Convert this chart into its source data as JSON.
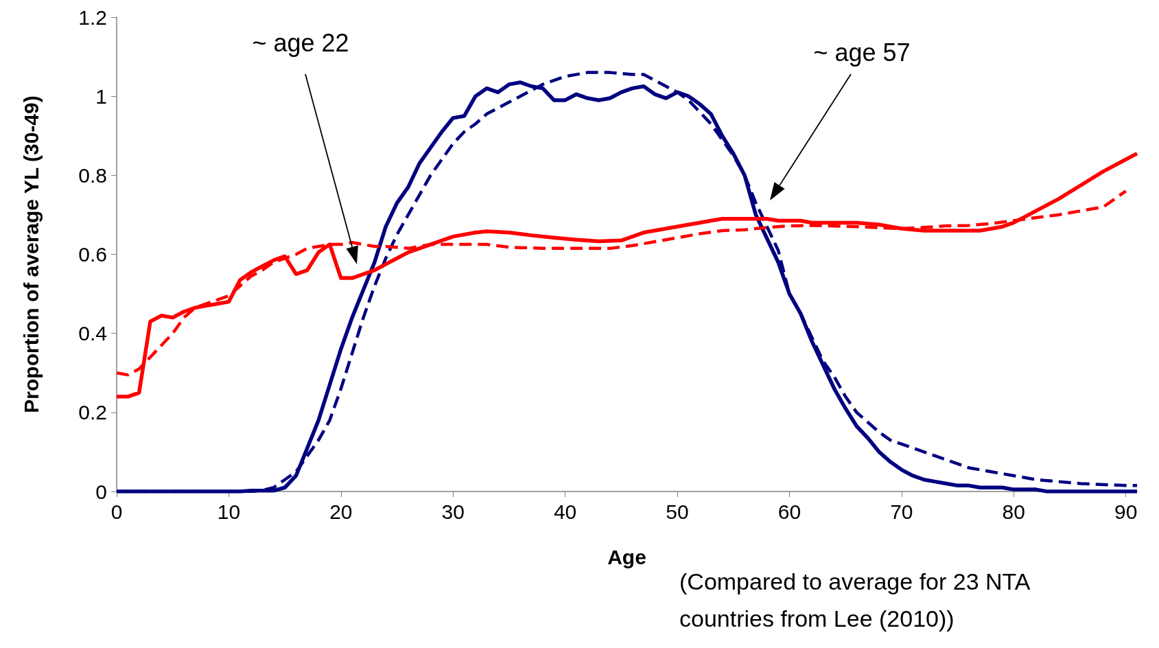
{
  "chart_data": {
    "type": "line",
    "xlabel": "Age",
    "ylabel": "Proportion of average YL (30-49)",
    "xlim": [
      0,
      91
    ],
    "xticks": [
      0,
      10,
      20,
      30,
      40,
      50,
      60,
      70,
      80,
      90
    ],
    "ylim": [
      0,
      1.2
    ],
    "yticks": [
      0,
      0.2,
      0.4,
      0.6,
      0.8,
      1,
      1.2
    ],
    "grid": false,
    "marker": "none",
    "annotations": [
      "~ age 22",
      "~ age 57",
      "(Compared to average for 23 NTA countries from Lee (2010))"
    ],
    "series": [
      {
        "color": "#ff0000",
        "line_style": "solid",
        "x": [
          0,
          1,
          2,
          3,
          4,
          5,
          6,
          7,
          8,
          9,
          10,
          11,
          12,
          13,
          14,
          15,
          16,
          17,
          18,
          19,
          20,
          21,
          22,
          23,
          24,
          25,
          26,
          27,
          28,
          29,
          30,
          32,
          33,
          35,
          37,
          39,
          41,
          43,
          45,
          47,
          49,
          51,
          53,
          54,
          57,
          58,
          59,
          61,
          62,
          66,
          68,
          70,
          72,
          77,
          79,
          80,
          82,
          84,
          86,
          88,
          90,
          91
        ],
        "values": [
          0.24,
          0.24,
          0.25,
          0.43,
          0.445,
          0.44,
          0.455,
          0.465,
          0.47,
          0.475,
          0.48,
          0.535,
          0.555,
          0.57,
          0.585,
          0.595,
          0.55,
          0.56,
          0.605,
          0.625,
          0.54,
          0.54,
          0.55,
          0.56,
          0.575,
          0.59,
          0.605,
          0.615,
          0.625,
          0.635,
          0.645,
          0.655,
          0.658,
          0.655,
          0.648,
          0.642,
          0.637,
          0.633,
          0.635,
          0.655,
          0.665,
          0.675,
          0.685,
          0.69,
          0.69,
          0.69,
          0.685,
          0.685,
          0.68,
          0.68,
          0.675,
          0.665,
          0.66,
          0.66,
          0.67,
          0.68,
          0.71,
          0.74,
          0.775,
          0.81,
          0.84,
          0.855
        ]
      },
      {
        "color": "#ff0000",
        "line_style": "dashed",
        "x": [
          0,
          1,
          2,
          3,
          4,
          5,
          6,
          7,
          8,
          9,
          10,
          11,
          12,
          13,
          14,
          15,
          16,
          17,
          18,
          19,
          20,
          21,
          22,
          23,
          24,
          26,
          28,
          30,
          33,
          35,
          38,
          42,
          44,
          46,
          48,
          50,
          52,
          54,
          56,
          58,
          60,
          62,
          66,
          70,
          72,
          74,
          76,
          78,
          80,
          82,
          84,
          86,
          88,
          90
        ],
        "values": [
          0.3,
          0.295,
          0.31,
          0.34,
          0.37,
          0.4,
          0.44,
          0.465,
          0.475,
          0.485,
          0.495,
          0.52,
          0.545,
          0.56,
          0.58,
          0.59,
          0.6,
          0.615,
          0.62,
          0.625,
          0.625,
          0.63,
          0.625,
          0.62,
          0.62,
          0.615,
          0.625,
          0.625,
          0.625,
          0.618,
          0.615,
          0.615,
          0.615,
          0.622,
          0.632,
          0.642,
          0.652,
          0.66,
          0.662,
          0.668,
          0.672,
          0.673,
          0.67,
          0.665,
          0.668,
          0.672,
          0.673,
          0.678,
          0.685,
          0.693,
          0.7,
          0.71,
          0.72,
          0.76
        ]
      },
      {
        "color": "#000080",
        "line_style": "solid",
        "x": [
          0,
          11,
          12,
          14,
          15,
          16,
          17,
          18,
          19,
          20,
          21,
          22,
          23,
          24,
          25,
          26,
          27,
          28,
          29,
          30,
          31,
          32,
          33,
          34,
          35,
          36,
          37,
          38,
          39,
          40,
          41,
          42,
          43,
          44,
          45,
          46,
          47,
          48,
          49,
          50,
          51,
          52,
          53,
          54,
          55,
          56,
          57,
          58,
          59,
          60,
          61,
          62,
          63,
          64,
          65,
          66,
          67,
          68,
          69,
          70,
          71,
          72,
          73,
          74,
          75,
          76,
          77,
          79,
          80,
          82,
          83,
          91
        ],
        "values": [
          0,
          0,
          0.002,
          0.002,
          0.01,
          0.04,
          0.11,
          0.18,
          0.27,
          0.36,
          0.44,
          0.51,
          0.58,
          0.67,
          0.73,
          0.77,
          0.83,
          0.87,
          0.91,
          0.945,
          0.95,
          1,
          1.02,
          1.01,
          1.03,
          1.035,
          1.025,
          1.02,
          0.99,
          0.99,
          1.005,
          0.995,
          0.99,
          0.995,
          1.01,
          1.02,
          1.025,
          1.005,
          0.995,
          1.01,
          1,
          0.98,
          0.955,
          0.9,
          0.855,
          0.8,
          0.7,
          0.64,
          0.58,
          0.5,
          0.45,
          0.38,
          0.32,
          0.26,
          0.21,
          0.165,
          0.135,
          0.1,
          0.075,
          0.055,
          0.04,
          0.03,
          0.025,
          0.02,
          0.015,
          0.015,
          0.01,
          0.01,
          0.005,
          0.005,
          0,
          0
        ]
      },
      {
        "color": "#000080",
        "line_style": "dashed",
        "x": [
          0,
          12,
          13,
          14,
          15,
          16,
          17,
          18,
          19,
          20,
          21,
          22,
          23,
          24,
          25,
          26,
          27,
          28,
          29,
          30,
          31,
          32,
          33,
          34,
          35,
          36,
          37,
          38,
          39,
          40,
          42,
          44,
          46,
          47,
          48,
          49,
          50,
          51,
          52,
          53,
          54,
          55,
          56,
          57,
          58,
          59,
          60,
          61,
          62,
          63,
          64,
          65,
          66,
          67,
          68,
          69,
          70,
          71,
          72,
          73,
          74,
          75,
          76,
          77,
          78,
          80,
          82,
          84,
          86,
          90,
          91
        ],
        "values": [
          0,
          0,
          0.003,
          0.01,
          0.03,
          0.05,
          0.09,
          0.13,
          0.18,
          0.26,
          0.35,
          0.44,
          0.52,
          0.59,
          0.65,
          0.7,
          0.75,
          0.8,
          0.84,
          0.88,
          0.91,
          0.93,
          0.955,
          0.97,
          0.985,
          1,
          1.015,
          1.03,
          1.04,
          1.05,
          1.06,
          1.06,
          1.055,
          1.055,
          1.04,
          1.025,
          1.01,
          0.99,
          0.96,
          0.93,
          0.89,
          0.85,
          0.8,
          0.73,
          0.67,
          0.61,
          0.5,
          0.45,
          0.39,
          0.33,
          0.29,
          0.24,
          0.2,
          0.175,
          0.15,
          0.13,
          0.12,
          0.11,
          0.1,
          0.09,
          0.08,
          0.07,
          0.06,
          0.055,
          0.05,
          0.04,
          0.03,
          0.025,
          0.02,
          0.015,
          0.015
        ]
      }
    ]
  }
}
